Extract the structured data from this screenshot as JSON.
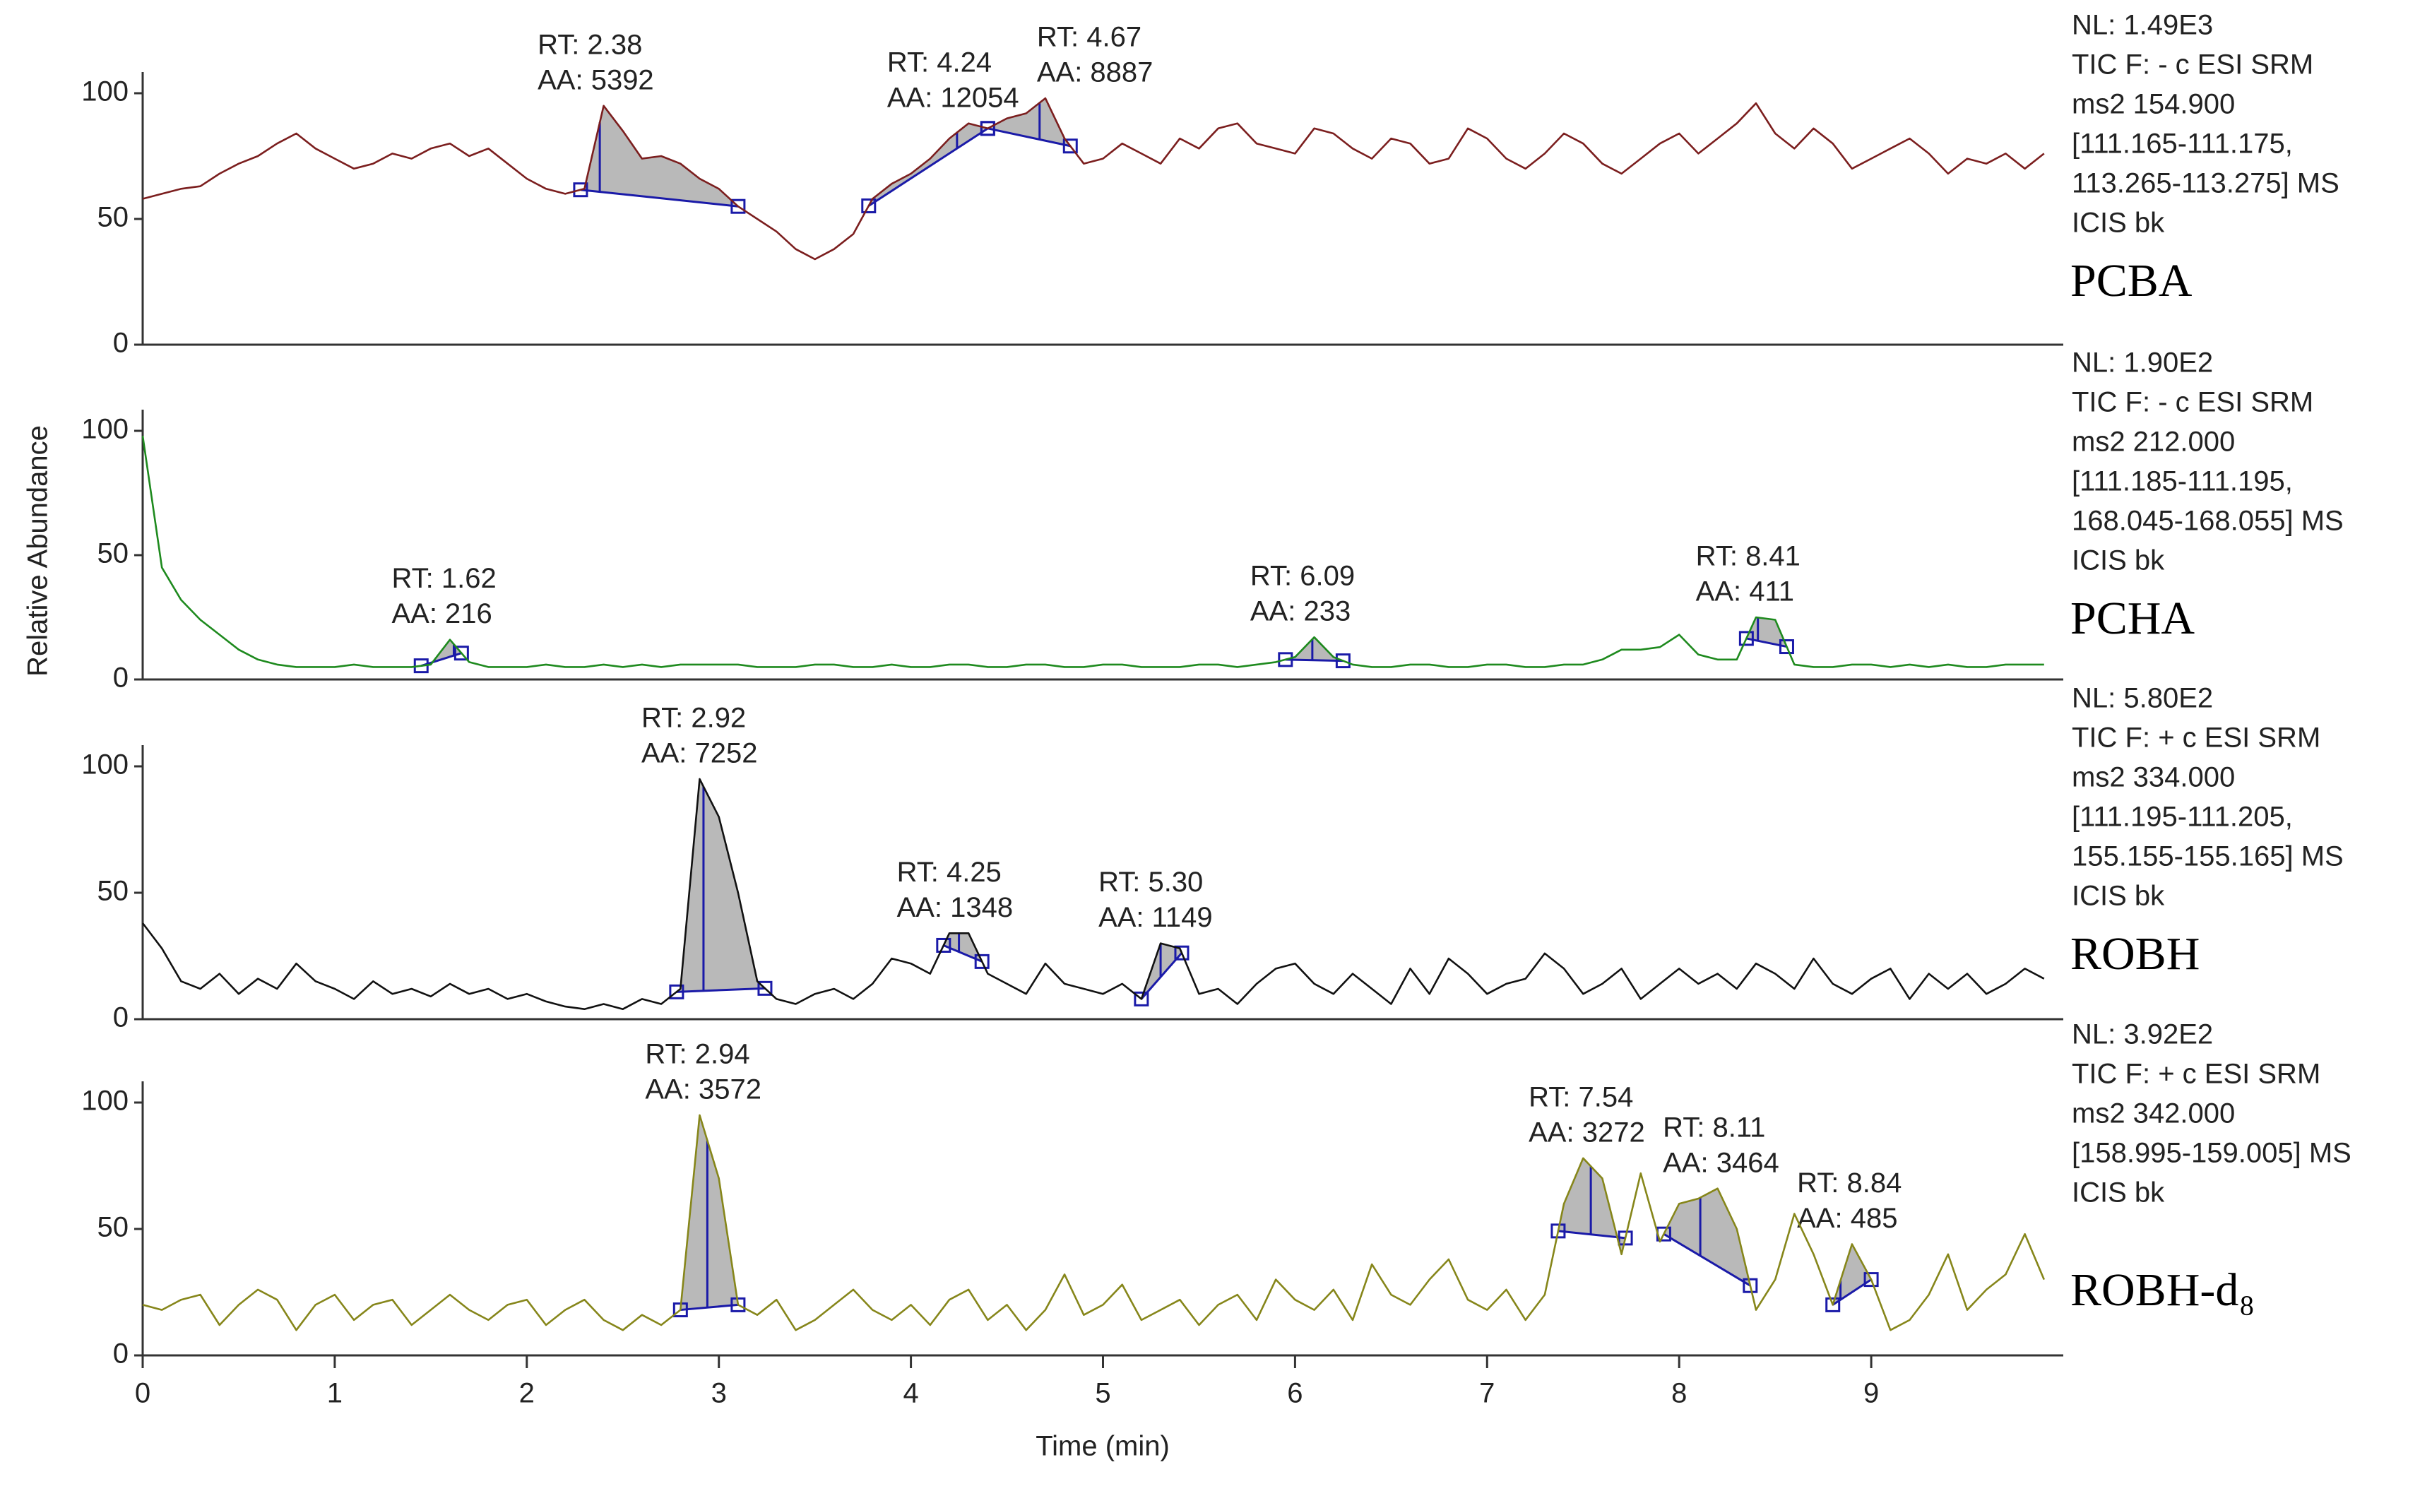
{
  "axis_labels": {
    "y": "Relative Abundance",
    "x": "Time (min)"
  },
  "chart_data": [
    {
      "type": "line",
      "x": [
        0,
        0.1,
        0.2,
        0.3,
        0.4,
        0.5,
        0.6,
        0.7,
        0.8,
        0.9,
        1,
        1.1,
        1.2,
        1.3,
        1.4,
        1.5,
        1.6,
        1.7,
        1.8,
        1.9,
        2,
        2.1,
        2.2,
        2.3,
        2.4,
        2.5,
        2.6,
        2.7,
        2.8,
        2.9,
        3,
        3.1,
        3.2,
        3.3,
        3.4,
        3.5,
        3.6,
        3.7,
        3.8,
        3.9,
        4,
        4.1,
        4.2,
        4.3,
        4.4,
        4.5,
        4.6,
        4.7,
        4.8,
        4.9,
        5,
        5.1,
        5.2,
        5.3,
        5.4,
        5.5,
        5.6,
        5.7,
        5.8,
        5.9,
        6,
        6.1,
        6.2,
        6.3,
        6.4,
        6.5,
        6.6,
        6.7,
        6.8,
        6.9,
        7,
        7.1,
        7.2,
        7.3,
        7.4,
        7.5,
        7.6,
        7.7,
        7.8,
        7.9,
        8,
        8.1,
        8.2,
        8.3,
        8.4,
        8.5,
        8.6,
        8.7,
        8.8,
        8.9,
        9,
        9.1,
        9.2,
        9.3,
        9.4,
        9.5,
        9.6,
        9.7,
        9.8,
        9.9
      ],
      "series": [
        {
          "name": "PCBA",
          "color": "#7b1e1e",
          "values": [
            58,
            60,
            62,
            63,
            68,
            72,
            75,
            80,
            84,
            78,
            74,
            70,
            72,
            76,
            74,
            78,
            80,
            75,
            78,
            72,
            66,
            62,
            60,
            62,
            95,
            85,
            74,
            75,
            72,
            66,
            62,
            55,
            50,
            45,
            38,
            34,
            38,
            44,
            58,
            64,
            68,
            74,
            82,
            88,
            86,
            90,
            92,
            98,
            82,
            72,
            74,
            80,
            76,
            72,
            82,
            78,
            86,
            88,
            80,
            78,
            76,
            86,
            84,
            78,
            74,
            82,
            80,
            72,
            74,
            86,
            82,
            74,
            70,
            76,
            84,
            80,
            72,
            68,
            74,
            80,
            84,
            76,
            82,
            88,
            96,
            84,
            78,
            86,
            80,
            70,
            74,
            78,
            82,
            76,
            68,
            74,
            72,
            76,
            70,
            76
          ]
        }
      ],
      "info": [
        "NL: 1.49E3",
        "TIC F: - c ESI SRM",
        "ms2 154.900",
        "[111.165-111.175,",
        "113.265-113.275] MS",
        "ICIS bk"
      ],
      "info_color": "#8b2222",
      "peaks": [
        {
          "rt": {
            "value": 2.38,
            "label": "RT: 2.38"
          },
          "area": {
            "value": 5392,
            "label": "AA: 5392"
          },
          "start": 2.28,
          "end": 3.1
        },
        {
          "rt": {
            "value": 4.24,
            "label": "RT: 4.24"
          },
          "area": {
            "value": 12054,
            "label": "AA: 12054"
          },
          "start": 3.78,
          "end": 4.4
        },
        {
          "rt": {
            "value": 4.67,
            "label": "RT: 4.67"
          },
          "area": {
            "value": 8887,
            "label": "AA: 8887"
          },
          "start": 4.4,
          "end": 4.83
        }
      ],
      "xlim": [
        0,
        10
      ],
      "ylim": [
        0,
        100
      ],
      "yticks": [
        0,
        50,
        100
      ]
    },
    {
      "type": "line",
      "x": [
        0,
        0.1,
        0.2,
        0.3,
        0.4,
        0.5,
        0.6,
        0.7,
        0.8,
        0.9,
        1,
        1.1,
        1.2,
        1.3,
        1.4,
        1.5,
        1.6,
        1.7,
        1.8,
        1.9,
        2,
        2.1,
        2.2,
        2.3,
        2.4,
        2.5,
        2.6,
        2.7,
        2.8,
        2.9,
        3,
        3.1,
        3.2,
        3.3,
        3.4,
        3.5,
        3.6,
        3.7,
        3.8,
        3.9,
        4,
        4.1,
        4.2,
        4.3,
        4.4,
        4.5,
        4.6,
        4.7,
        4.8,
        4.9,
        5,
        5.1,
        5.2,
        5.3,
        5.4,
        5.5,
        5.6,
        5.7,
        5.8,
        5.9,
        6,
        6.1,
        6.2,
        6.3,
        6.4,
        6.5,
        6.6,
        6.7,
        6.8,
        6.9,
        7,
        7.1,
        7.2,
        7.3,
        7.4,
        7.5,
        7.6,
        7.7,
        7.8,
        7.9,
        8,
        8.1,
        8.2,
        8.3,
        8.4,
        8.5,
        8.6,
        8.7,
        8.8,
        8.9,
        9,
        9.1,
        9.2,
        9.3,
        9.4,
        9.5,
        9.6,
        9.7,
        9.8,
        9.9
      ],
      "series": [
        {
          "name": "PCHA",
          "color": "#1e8a1e",
          "values": [
            98,
            45,
            32,
            24,
            18,
            12,
            8,
            6,
            5,
            5,
            5,
            6,
            5,
            5,
            5,
            6,
            16,
            7,
            5,
            5,
            5,
            6,
            5,
            5,
            6,
            5,
            6,
            5,
            6,
            6,
            6,
            6,
            5,
            5,
            5,
            6,
            6,
            5,
            5,
            6,
            5,
            5,
            6,
            6,
            5,
            5,
            6,
            6,
            5,
            5,
            6,
            6,
            5,
            5,
            5,
            6,
            6,
            5,
            6,
            7,
            9,
            17,
            9,
            6,
            5,
            5,
            6,
            6,
            5,
            5,
            6,
            6,
            5,
            5,
            6,
            6,
            8,
            12,
            12,
            13,
            18,
            10,
            8,
            8,
            25,
            24,
            6,
            5,
            5,
            6,
            6,
            5,
            6,
            5,
            6,
            5,
            5,
            6,
            6,
            6
          ]
        }
      ],
      "info": [
        "NL: 1.90E2",
        "TIC F: - c ESI SRM",
        "ms2 212.000",
        "[111.185-111.195,",
        "168.045-168.055] MS",
        "ICIS bk"
      ],
      "info_color": "#1e8a1e",
      "peaks": [
        {
          "rt": {
            "value": 1.62,
            "label": "RT: 1.62"
          },
          "area": {
            "value": 216,
            "label": "AA: 216"
          },
          "start": 1.45,
          "end": 1.66
        },
        {
          "rt": {
            "value": 6.09,
            "label": "RT: 6.09"
          },
          "area": {
            "value": 233,
            "label": "AA: 233"
          },
          "start": 5.95,
          "end": 6.25
        },
        {
          "rt": {
            "value": 8.41,
            "label": "RT: 8.41"
          },
          "area": {
            "value": 411,
            "label": "AA: 411"
          },
          "start": 8.35,
          "end": 8.56
        }
      ],
      "xlim": [
        0,
        10
      ],
      "ylim": [
        0,
        100
      ],
      "yticks": [
        0,
        50,
        100
      ]
    },
    {
      "type": "line",
      "x": [
        0,
        0.1,
        0.2,
        0.3,
        0.4,
        0.5,
        0.6,
        0.7,
        0.8,
        0.9,
        1,
        1.1,
        1.2,
        1.3,
        1.4,
        1.5,
        1.6,
        1.7,
        1.8,
        1.9,
        2,
        2.1,
        2.2,
        2.3,
        2.4,
        2.5,
        2.6,
        2.7,
        2.8,
        2.9,
        3,
        3.1,
        3.2,
        3.3,
        3.4,
        3.5,
        3.6,
        3.7,
        3.8,
        3.9,
        4,
        4.1,
        4.2,
        4.3,
        4.4,
        4.5,
        4.6,
        4.7,
        4.8,
        4.9,
        5,
        5.1,
        5.2,
        5.3,
        5.4,
        5.5,
        5.6,
        5.7,
        5.8,
        5.9,
        6,
        6.1,
        6.2,
        6.3,
        6.4,
        6.5,
        6.6,
        6.7,
        6.8,
        6.9,
        7,
        7.1,
        7.2,
        7.3,
        7.4,
        7.5,
        7.6,
        7.7,
        7.8,
        7.9,
        8,
        8.1,
        8.2,
        8.3,
        8.4,
        8.5,
        8.6,
        8.7,
        8.8,
        8.9,
        9,
        9.1,
        9.2,
        9.3,
        9.4,
        9.5,
        9.6,
        9.7,
        9.8,
        9.9
      ],
      "series": [
        {
          "name": "ROBH",
          "color": "#111111",
          "values": [
            38,
            28,
            15,
            12,
            18,
            10,
            16,
            12,
            22,
            15,
            12,
            8,
            15,
            10,
            12,
            9,
            14,
            10,
            12,
            8,
            10,
            7,
            5,
            4,
            6,
            4,
            8,
            6,
            12,
            95,
            80,
            50,
            15,
            8,
            6,
            10,
            12,
            8,
            14,
            24,
            22,
            18,
            34,
            34,
            18,
            14,
            10,
            22,
            14,
            12,
            10,
            14,
            8,
            30,
            28,
            10,
            12,
            6,
            14,
            20,
            22,
            14,
            10,
            18,
            12,
            6,
            20,
            10,
            24,
            18,
            10,
            14,
            16,
            26,
            20,
            10,
            14,
            20,
            8,
            14,
            20,
            14,
            18,
            12,
            22,
            18,
            12,
            24,
            14,
            10,
            16,
            20,
            8,
            18,
            12,
            18,
            10,
            14,
            20,
            16
          ]
        }
      ],
      "info": [
        "NL: 5.80E2",
        "TIC F: + c ESI SRM",
        "ms2 334.000",
        "[111.195-111.205,",
        "155.155-155.165] MS",
        "ICIS bk"
      ],
      "info_color": "#1c1c7a",
      "peaks": [
        {
          "rt": {
            "value": 2.92,
            "label": "RT: 2.92"
          },
          "area": {
            "value": 7252,
            "label": "AA: 7252"
          },
          "start": 2.78,
          "end": 3.24
        },
        {
          "rt": {
            "value": 4.25,
            "label": "RT: 4.25"
          },
          "area": {
            "value": 1348,
            "label": "AA: 1348"
          },
          "start": 4.17,
          "end": 4.37
        },
        {
          "rt": {
            "value": 5.3,
            "label": "RT: 5.30"
          },
          "area": {
            "value": 1149,
            "label": "AA: 1149"
          },
          "start": 5.2,
          "end": 5.41
        }
      ],
      "xlim": [
        0,
        10
      ],
      "ylim": [
        0,
        100
      ],
      "yticks": [
        0,
        50,
        100
      ]
    },
    {
      "type": "line",
      "x": [
        0,
        0.1,
        0.2,
        0.3,
        0.4,
        0.5,
        0.6,
        0.7,
        0.8,
        0.9,
        1,
        1.1,
        1.2,
        1.3,
        1.4,
        1.5,
        1.6,
        1.7,
        1.8,
        1.9,
        2,
        2.1,
        2.2,
        2.3,
        2.4,
        2.5,
        2.6,
        2.7,
        2.8,
        2.9,
        3,
        3.1,
        3.2,
        3.3,
        3.4,
        3.5,
        3.6,
        3.7,
        3.8,
        3.9,
        4,
        4.1,
        4.2,
        4.3,
        4.4,
        4.5,
        4.6,
        4.7,
        4.8,
        4.9,
        5,
        5.1,
        5.2,
        5.3,
        5.4,
        5.5,
        5.6,
        5.7,
        5.8,
        5.9,
        6,
        6.1,
        6.2,
        6.3,
        6.4,
        6.5,
        6.6,
        6.7,
        6.8,
        6.9,
        7,
        7.1,
        7.2,
        7.3,
        7.4,
        7.5,
        7.6,
        7.7,
        7.8,
        7.9,
        8,
        8.1,
        8.2,
        8.3,
        8.4,
        8.5,
        8.6,
        8.7,
        8.8,
        8.9,
        9,
        9.1,
        9.2,
        9.3,
        9.4,
        9.5,
        9.6,
        9.7,
        9.8,
        9.9
      ],
      "series": [
        {
          "name": "ROBH-d₈",
          "color": "#86861a",
          "values": [
            20,
            18,
            22,
            24,
            12,
            20,
            26,
            22,
            10,
            20,
            24,
            14,
            20,
            22,
            12,
            18,
            24,
            18,
            14,
            20,
            22,
            12,
            18,
            22,
            14,
            10,
            16,
            12,
            18,
            95,
            70,
            20,
            16,
            22,
            10,
            14,
            20,
            26,
            18,
            14,
            20,
            12,
            22,
            26,
            14,
            20,
            10,
            18,
            32,
            16,
            20,
            28,
            14,
            18,
            22,
            12,
            20,
            24,
            14,
            30,
            22,
            18,
            26,
            14,
            36,
            24,
            20,
            30,
            38,
            22,
            18,
            26,
            14,
            24,
            60,
            78,
            70,
            40,
            72,
            45,
            60,
            62,
            66,
            50,
            18,
            30,
            56,
            40,
            20,
            44,
            30,
            10,
            14,
            24,
            40,
            18,
            26,
            32,
            48,
            30
          ]
        }
      ],
      "info": [
        "NL: 3.92E2",
        "TIC F: + c ESI SRM",
        "ms2 342.000",
        "[158.995-159.005] MS",
        "ICIS bk"
      ],
      "info_color": "#86861a",
      "peaks": [
        {
          "rt": {
            "value": 2.94,
            "label": "RT: 2.94"
          },
          "area": {
            "value": 3572,
            "label": "AA: 3572"
          },
          "start": 2.8,
          "end": 3.1
        },
        {
          "rt": {
            "value": 7.54,
            "label": "RT: 7.54"
          },
          "area": {
            "value": 3272,
            "label": "AA: 3272"
          },
          "start": 7.37,
          "end": 7.72
        },
        {
          "rt": {
            "value": 8.11,
            "label": "RT: 8.11"
          },
          "area": {
            "value": 3464,
            "label": "AA: 3464"
          },
          "start": 7.92,
          "end": 8.37
        },
        {
          "rt": {
            "value": 8.84,
            "label": "RT: 8.84"
          },
          "area": {
            "value": 485,
            "label": "AA: 485"
          },
          "start": 8.8,
          "end": 9.0
        }
      ],
      "xlim": [
        0,
        10
      ],
      "ylim": [
        0,
        100
      ],
      "yticks": [
        0,
        50,
        100
      ],
      "xticks": [
        0,
        1,
        2,
        3,
        4,
        5,
        6,
        7,
        8,
        9
      ]
    }
  ]
}
